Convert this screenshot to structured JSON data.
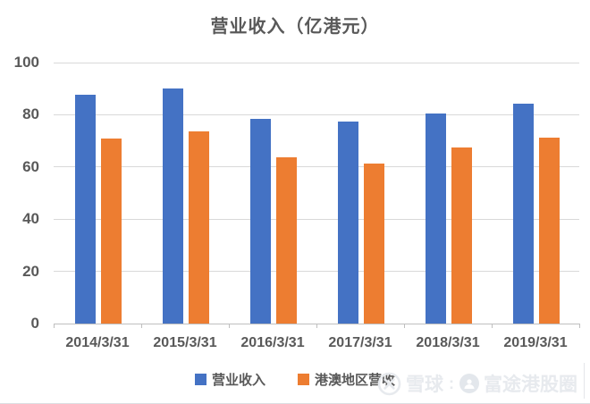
{
  "chart_data": {
    "type": "bar",
    "title": "营业收入（亿港元）",
    "xlabel": "",
    "ylabel": "",
    "categories": [
      "2014/3/31",
      "2015/3/31",
      "2016/3/31",
      "2017/3/31",
      "2018/3/31",
      "2019/3/31"
    ],
    "series": [
      {
        "name": "营业收入",
        "color": "#4472C4",
        "values": [
          87.5,
          90.0,
          78.3,
          77.3,
          80.4,
          84.3
        ]
      },
      {
        "name": "港澳地区营收",
        "color": "#ED7D31",
        "values": [
          71.0,
          73.7,
          63.6,
          61.3,
          67.6,
          71.3
        ]
      }
    ],
    "ylim": [
      0,
      100
    ],
    "yticks": [
      0,
      20,
      40,
      60,
      80,
      100
    ],
    "grid": true,
    "legend_position": "bottom"
  },
  "watermark": {
    "brand": "雪球",
    "separator": ":",
    "account": "富途港股圈"
  },
  "colors": {
    "series_blue": "#4472C4",
    "series_orange": "#ED7D31",
    "gridline": "#D9D9D9",
    "axis": "#BFBFBF",
    "text": "#595959",
    "watermark": "#E7EAEE",
    "background": "#FFFFFF"
  }
}
